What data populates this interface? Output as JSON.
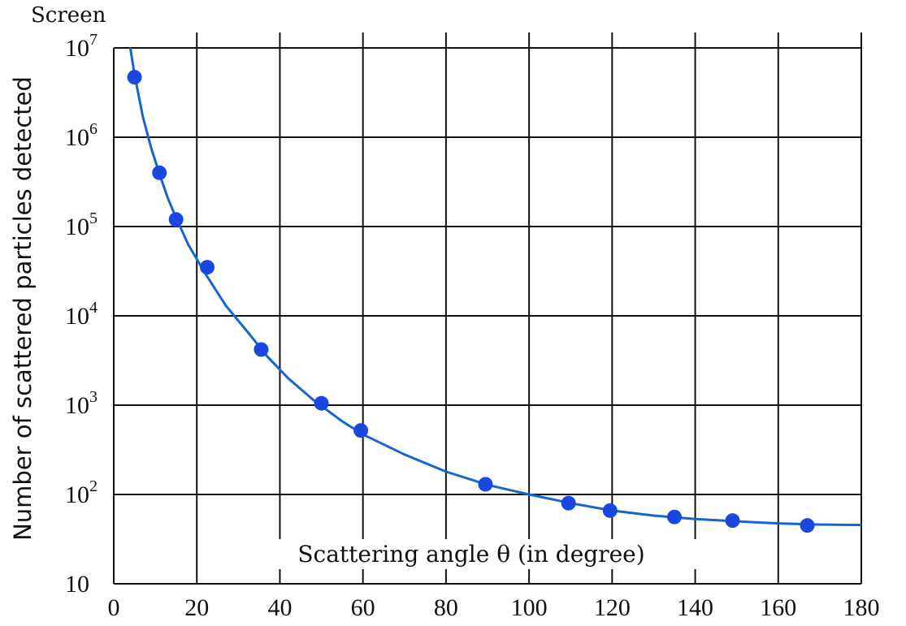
{
  "corner_caption": "Screen",
  "chart_data": {
    "type": "scatter",
    "xlabel": "Scattering angle θ (in degree)",
    "ylabel": "Number of  scattered particles detected",
    "xlim": [
      0,
      180
    ],
    "ylim": [
      10,
      10000000
    ],
    "yscale": "log",
    "grid": true,
    "x_ticks": [
      {
        "value": 0,
        "label": "0"
      },
      {
        "value": 20,
        "label": "20"
      },
      {
        "value": 40,
        "label": "40"
      },
      {
        "value": 60,
        "label": "60"
      },
      {
        "value": 80,
        "label": "80"
      },
      {
        "value": 100,
        "label": "100"
      },
      {
        "value": 120,
        "label": "120"
      },
      {
        "value": 140,
        "label": "140"
      },
      {
        "value": 160,
        "label": "160"
      },
      {
        "value": 180,
        "label": "180"
      }
    ],
    "y_ticks": [
      {
        "value": 10,
        "base": "10",
        "exp": ""
      },
      {
        "value": 100,
        "base": "10",
        "exp": "2"
      },
      {
        "value": 1000,
        "base": "10",
        "exp": "3"
      },
      {
        "value": 10000,
        "base": "10",
        "exp": "4"
      },
      {
        "value": 100000,
        "base": "10",
        "exp": "5"
      },
      {
        "value": 1000000,
        "base": "10",
        "exp": "6"
      },
      {
        "value": 10000000,
        "base": "10",
        "exp": "7"
      }
    ],
    "series": [
      {
        "kind": "points",
        "color": "#1a47e0",
        "points": [
          [
            5,
            4700000
          ],
          [
            11,
            400000
          ],
          [
            15,
            120000
          ],
          [
            22.5,
            35000
          ],
          [
            35.5,
            4200
          ],
          [
            50,
            1050
          ],
          [
            59.5,
            520
          ],
          [
            89.5,
            130
          ],
          [
            109.5,
            80
          ],
          [
            119.5,
            66
          ],
          [
            135,
            56
          ],
          [
            149,
            51
          ],
          [
            167,
            45
          ]
        ]
      },
      {
        "kind": "curve",
        "color": "#1566cc",
        "points": [
          [
            4,
            10000000
          ],
          [
            5,
            5000000
          ],
          [
            7,
            1700000
          ],
          [
            9,
            760000
          ],
          [
            11,
            390000
          ],
          [
            13,
            210000
          ],
          [
            15,
            125000
          ],
          [
            18,
            62000
          ],
          [
            22,
            30000
          ],
          [
            27,
            13000
          ],
          [
            32,
            6800
          ],
          [
            37,
            3500
          ],
          [
            42,
            2000
          ],
          [
            48,
            1150
          ],
          [
            55,
            660
          ],
          [
            60,
            470
          ],
          [
            70,
            280
          ],
          [
            80,
            180
          ],
          [
            90,
            128
          ],
          [
            100,
            100
          ],
          [
            110,
            80
          ],
          [
            120,
            66
          ],
          [
            130,
            58
          ],
          [
            140,
            53
          ],
          [
            150,
            50
          ],
          [
            160,
            47.5
          ],
          [
            170,
            46
          ],
          [
            180,
            45.5
          ]
        ]
      }
    ]
  }
}
